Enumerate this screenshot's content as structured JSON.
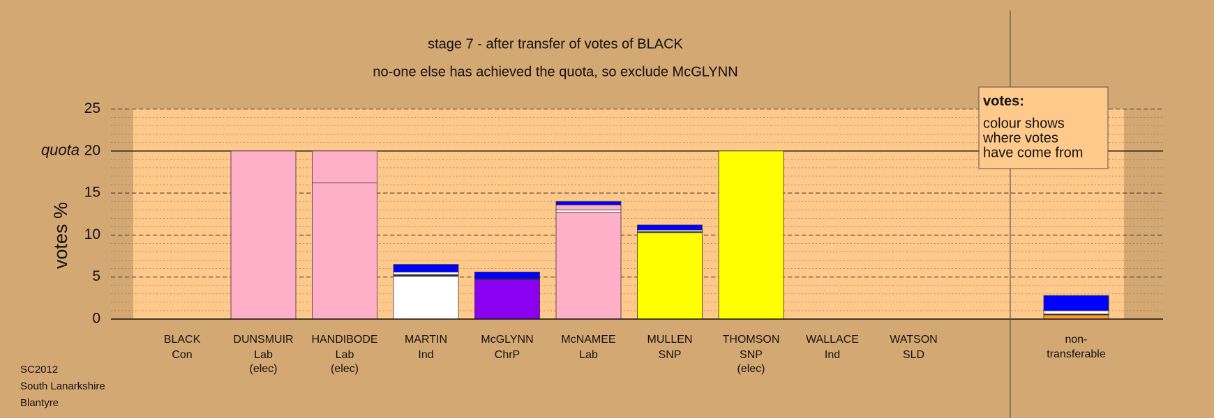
{
  "chart_data": {
    "type": "stacked-bar",
    "title": "stage 7 - after transfer of votes of BLACK",
    "subtitle": "no-one else has achieved the quota, so exclude McGLYNN",
    "y_label": "votes %",
    "ylim": [
      0,
      25
    ],
    "yticks": [
      0,
      5,
      10,
      15,
      20,
      25
    ],
    "quota": {
      "value": 20,
      "label": "quota"
    },
    "categories": [
      "BLACK",
      "DUNSMUIR",
      "HANDIBODE",
      "MARTIN",
      "McGLYNN",
      "McNAMEE",
      "MULLEN",
      "THOMSON",
      "WALLACE",
      "WATSON",
      "non-\ntransferable"
    ],
    "parties": [
      "Con",
      "Lab",
      "Lab",
      "Ind",
      "ChrP",
      "Lab",
      "SNP",
      "SNP",
      "Ind",
      "SLD",
      null
    ],
    "notes": [
      null,
      "(elec)",
      "(elec)",
      null,
      null,
      null,
      null,
      "(elec)",
      null,
      null,
      null
    ],
    "segments": [
      [],
      [
        {
          "value": 20,
          "color": "#ffb0c8"
        }
      ],
      [
        {
          "value": 16.2,
          "color": "#ffb0c8"
        },
        {
          "value": 3.8,
          "color": "#ffb0c8"
        }
      ],
      [
        {
          "value": 5.1,
          "color": "#ffffff"
        },
        {
          "value": 0.2,
          "color": "#333333"
        },
        {
          "value": 0.3,
          "color": "#ffffff"
        },
        {
          "value": 0.9,
          "color": "#0000ff"
        }
      ],
      [
        {
          "value": 4.7,
          "color": "#8b00f0"
        },
        {
          "value": 0.1,
          "color": "#333333"
        },
        {
          "value": 0.8,
          "color": "#0000ff"
        }
      ],
      [
        {
          "value": 12.7,
          "color": "#ffb0c8"
        },
        {
          "value": 0.3,
          "color": "#ffffff"
        },
        {
          "value": 0.6,
          "color": "#ffb0c8"
        },
        {
          "value": 0.4,
          "color": "#0000ff"
        }
      ],
      [
        {
          "value": 10.3,
          "color": "#ffff00"
        },
        {
          "value": 0.1,
          "color": "#333333"
        },
        {
          "value": 0.2,
          "color": "#ffffff"
        },
        {
          "value": 0.6,
          "color": "#0000ff"
        }
      ],
      [
        {
          "value": 20,
          "color": "#ffff00"
        }
      ],
      [],
      [],
      [
        {
          "value": 0.5,
          "color": "#ff9933"
        },
        {
          "value": 0.1,
          "color": "#333333"
        },
        {
          "value": 0.4,
          "color": "#ffffff"
        },
        {
          "value": 1.8,
          "color": "#0000ff"
        }
      ]
    ],
    "legend": {
      "title": "votes:",
      "lines": [
        "colour shows",
        "where votes",
        "have come from"
      ]
    },
    "footer": [
      "SC2012",
      "South Lanarkshire",
      "Blantyre"
    ]
  }
}
